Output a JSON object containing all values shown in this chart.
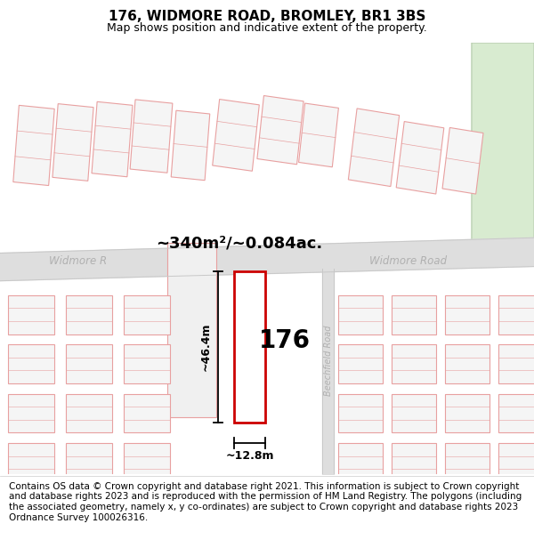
{
  "title": "176, WIDMORE ROAD, BROMLEY, BR1 3BS",
  "subtitle": "Map shows position and indicative extent of the property.",
  "footer": "Contains OS data © Crown copyright and database right 2021. This information is subject to Crown copyright and database rights 2023 and is reproduced with the permission of HM Land Registry. The polygons (including the associated geometry, namely x, y co-ordinates) are subject to Crown copyright and database rights 2023 Ordnance Survey 100026316.",
  "area_label": "~340m²/~0.084ac.",
  "width_label": "~12.8m",
  "height_label": "~46.4m",
  "number_label": "176",
  "road_label_widmore_left": "Widmore R",
  "road_label_widmore_right": "Widmore Road",
  "road_label_beechfield": "Beechfield Road",
  "bg_color": "#ffffff",
  "map_bg": "#f7f7f7",
  "road_color": "#dedede",
  "plot_line_color": "#cc0000",
  "map_line_color": "#e8a0a0",
  "green_area_color": "#d8ebd0",
  "green_border_color": "#b8ccb0",
  "title_fontsize": 11,
  "subtitle_fontsize": 9,
  "footer_fontsize": 7.5,
  "road_label_color": "#b0b0b0",
  "dim_line_color": "#000000"
}
